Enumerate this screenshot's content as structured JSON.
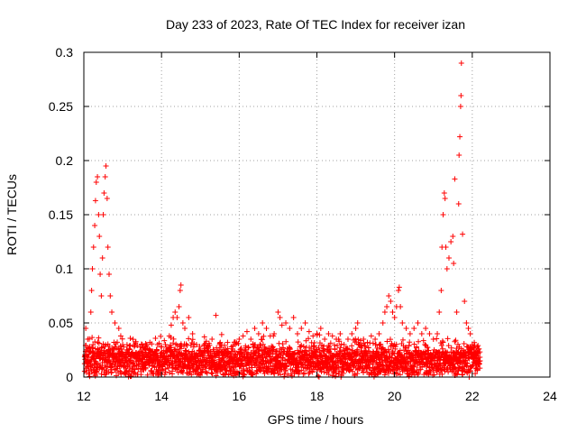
{
  "chart_data": {
    "type": "scatter",
    "title": "Day 233 of 2023, Rate Of TEC Index for receiver izan",
    "xlabel": "GPS time / hours",
    "ylabel": "ROTI / TECUs",
    "xlim": [
      12,
      24
    ],
    "ylim": [
      0,
      0.3
    ],
    "x_ticks": [
      "12",
      "14",
      "16",
      "18",
      "20",
      "22",
      "24"
    ],
    "y_ticks": [
      "0",
      "0.05",
      "0.1",
      "0.15",
      "0.2",
      "0.25",
      "0.3"
    ],
    "grid": true,
    "marker": "+",
    "color": "#ff0000",
    "series": [
      {
        "points": [
          [
            12.05,
            0.045
          ],
          [
            12.1,
            0.035
          ],
          [
            12.15,
            0.028
          ],
          [
            12.18,
            0.06
          ],
          [
            12.2,
            0.08
          ],
          [
            12.22,
            0.1
          ],
          [
            12.25,
            0.12
          ],
          [
            12.28,
            0.14
          ],
          [
            12.3,
            0.163
          ],
          [
            12.32,
            0.18
          ],
          [
            12.35,
            0.185
          ],
          [
            12.38,
            0.15
          ],
          [
            12.4,
            0.13
          ],
          [
            12.42,
            0.095
          ],
          [
            12.45,
            0.075
          ],
          [
            12.48,
            0.11
          ],
          [
            12.5,
            0.15
          ],
          [
            12.52,
            0.17
          ],
          [
            12.55,
            0.185
          ],
          [
            12.57,
            0.195
          ],
          [
            12.6,
            0.165
          ],
          [
            12.62,
            0.12
          ],
          [
            12.65,
            0.095
          ],
          [
            12.68,
            0.075
          ],
          [
            12.72,
            0.06
          ],
          [
            12.8,
            0.05
          ],
          [
            12.9,
            0.045
          ],
          [
            12.95,
            0.038
          ],
          [
            13.0,
            0.03
          ],
          [
            13.1,
            0.025
          ],
          [
            13.2,
            0.02
          ],
          [
            13.3,
            0.028
          ],
          [
            13.4,
            0.022
          ],
          [
            13.5,
            0.03
          ],
          [
            13.6,
            0.025
          ],
          [
            13.7,
            0.032
          ],
          [
            13.8,
            0.02
          ],
          [
            13.9,
            0.03
          ],
          [
            14.0,
            0.028
          ],
          [
            14.1,
            0.03
          ],
          [
            14.2,
            0.038
          ],
          [
            14.25,
            0.048
          ],
          [
            14.3,
            0.055
          ],
          [
            14.35,
            0.06
          ],
          [
            14.4,
            0.055
          ],
          [
            14.45,
            0.065
          ],
          [
            14.48,
            0.08
          ],
          [
            14.5,
            0.085
          ],
          [
            14.55,
            0.05
          ],
          [
            14.6,
            0.045
          ],
          [
            14.7,
            0.055
          ],
          [
            14.8,
            0.04
          ],
          [
            14.9,
            0.03
          ],
          [
            15.0,
            0.025
          ],
          [
            15.1,
            0.03
          ],
          [
            15.2,
            0.028
          ],
          [
            15.3,
            0.035
          ],
          [
            15.4,
            0.057
          ],
          [
            15.5,
            0.03
          ],
          [
            15.6,
            0.025
          ],
          [
            15.7,
            0.032
          ],
          [
            15.8,
            0.028
          ],
          [
            15.9,
            0.03
          ],
          [
            16.0,
            0.035
          ],
          [
            16.1,
            0.038
          ],
          [
            16.2,
            0.042
          ],
          [
            16.3,
            0.035
          ],
          [
            16.4,
            0.045
          ],
          [
            16.5,
            0.04
          ],
          [
            16.6,
            0.05
          ],
          [
            16.7,
            0.045
          ],
          [
            16.8,
            0.038
          ],
          [
            16.9,
            0.04
          ],
          [
            17.0,
            0.06
          ],
          [
            17.05,
            0.055
          ],
          [
            17.1,
            0.048
          ],
          [
            17.2,
            0.05
          ],
          [
            17.3,
            0.045
          ],
          [
            17.4,
            0.055
          ],
          [
            17.5,
            0.04
          ],
          [
            17.6,
            0.045
          ],
          [
            17.7,
            0.05
          ],
          [
            17.8,
            0.042
          ],
          [
            17.9,
            0.038
          ],
          [
            18.0,
            0.04
          ],
          [
            18.1,
            0.045
          ],
          [
            18.2,
            0.035
          ],
          [
            18.3,
            0.04
          ],
          [
            18.4,
            0.038
          ],
          [
            18.5,
            0.035
          ],
          [
            18.6,
            0.04
          ],
          [
            18.7,
            0.03
          ],
          [
            18.8,
            0.035
          ],
          [
            18.9,
            0.04
          ],
          [
            19.0,
            0.045
          ],
          [
            19.05,
            0.05
          ],
          [
            19.1,
            0.03
          ],
          [
            19.2,
            0.035
          ],
          [
            19.3,
            0.032
          ],
          [
            19.4,
            0.038
          ],
          [
            19.5,
            0.035
          ],
          [
            19.6,
            0.04
          ],
          [
            19.7,
            0.05
          ],
          [
            19.75,
            0.06
          ],
          [
            19.8,
            0.065
          ],
          [
            19.85,
            0.075
          ],
          [
            19.9,
            0.07
          ],
          [
            19.95,
            0.06
          ],
          [
            20.0,
            0.055
          ],
          [
            20.05,
            0.065
          ],
          [
            20.1,
            0.08
          ],
          [
            20.12,
            0.083
          ],
          [
            20.15,
            0.065
          ],
          [
            20.2,
            0.05
          ],
          [
            20.3,
            0.045
          ],
          [
            20.4,
            0.04
          ],
          [
            20.5,
            0.045
          ],
          [
            20.6,
            0.05
          ],
          [
            20.7,
            0.04
          ],
          [
            20.8,
            0.045
          ],
          [
            20.9,
            0.04
          ],
          [
            21.0,
            0.035
          ],
          [
            21.1,
            0.04
          ],
          [
            21.15,
            0.06
          ],
          [
            21.2,
            0.08
          ],
          [
            21.22,
            0.12
          ],
          [
            21.25,
            0.15
          ],
          [
            21.28,
            0.17
          ],
          [
            21.3,
            0.165
          ],
          [
            21.32,
            0.12
          ],
          [
            21.35,
            0.1
          ],
          [
            21.4,
            0.11
          ],
          [
            21.45,
            0.125
          ],
          [
            21.5,
            0.13
          ],
          [
            21.52,
            0.105
          ],
          [
            21.55,
            0.183
          ],
          [
            21.6,
            0.06
          ],
          [
            21.65,
            0.16
          ],
          [
            21.66,
            0.205
          ],
          [
            21.68,
            0.222
          ],
          [
            21.7,
            0.25
          ],
          [
            21.71,
            0.26
          ],
          [
            21.72,
            0.29
          ],
          [
            21.75,
            0.132
          ],
          [
            21.8,
            0.07
          ],
          [
            21.85,
            0.05
          ],
          [
            21.9,
            0.045
          ],
          [
            21.95,
            0.04
          ],
          [
            22.0,
            0.03
          ],
          [
            22.05,
            0.025
          ],
          [
            22.1,
            0.02
          ],
          [
            22.15,
            0.018
          ],
          [
            22.2,
            0.015
          ]
        ]
      }
    ]
  }
}
